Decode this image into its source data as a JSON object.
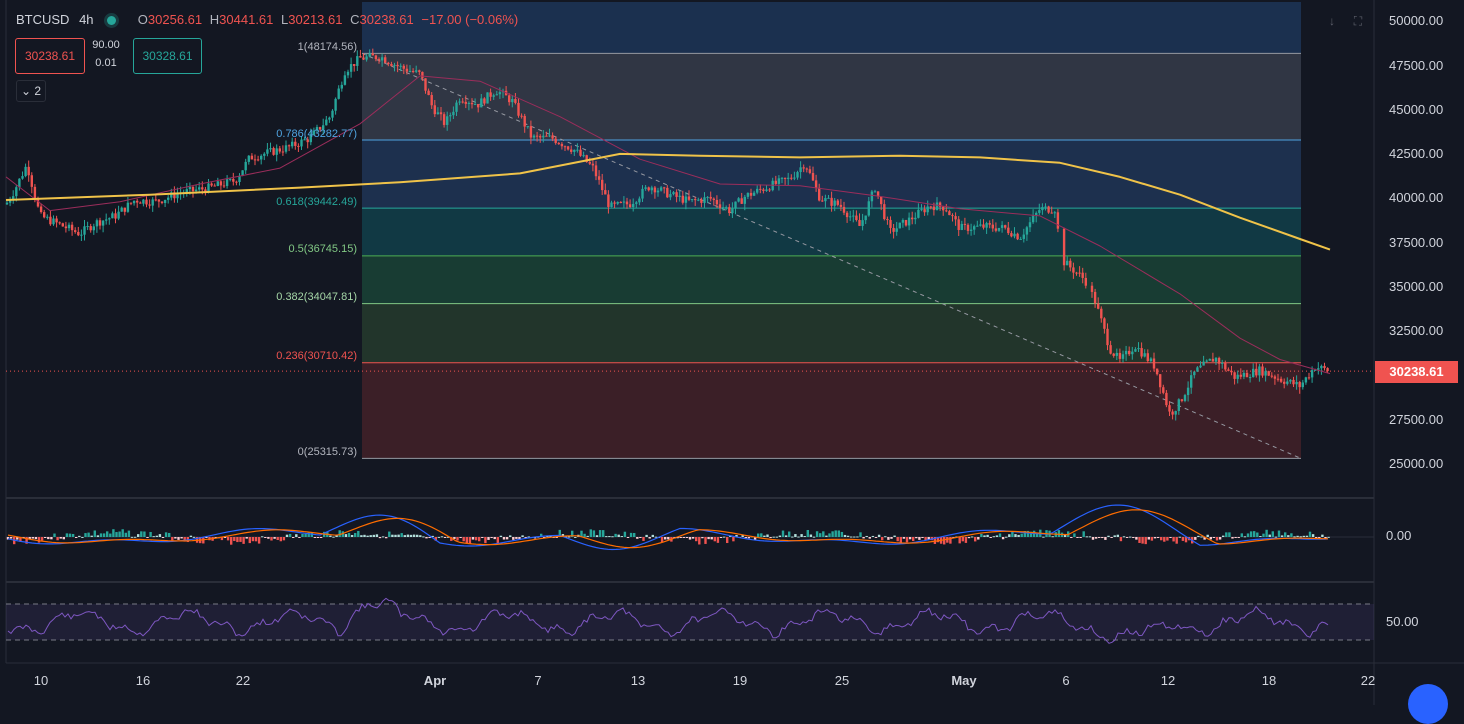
{
  "header": {
    "symbol": "BTCUSD",
    "interval": "4h",
    "ohlc": {
      "o_label": "O",
      "o": "30256.61",
      "h_label": "H",
      "h": "30441.61",
      "l_label": "L",
      "l": "30213.61",
      "c_label": "C",
      "c": "30238.61",
      "change": "−17.00 (−0.06%)"
    }
  },
  "trade": {
    "sell": "30238.61",
    "buy": "30328.61",
    "spread": "90.00",
    "lot": "0.01"
  },
  "collapse_button": {
    "count": "2"
  },
  "fib_labels": [
    "1(48174.56)",
    "0.786(43282.77)",
    "0.618(39442.49)",
    "0.5(36745.15)",
    "0.382(34047.81)",
    "0.236(30710.42)",
    "0(25315.73)"
  ],
  "price_axis": [
    "50000.00",
    "47500.00",
    "45000.00",
    "42500.00",
    "40000.00",
    "37500.00",
    "35000.00",
    "32500.00",
    "27500.00",
    "25000.00"
  ],
  "current_price_badge": "30238.61",
  "macd_axis": "0.00",
  "rsi_axis": "50.00",
  "time_axis": [
    "10",
    "16",
    "22",
    "Apr",
    "7",
    "13",
    "19",
    "25",
    "May",
    "6",
    "12",
    "18",
    "22"
  ],
  "colors": {
    "up": "#26a69a",
    "down": "#f05350",
    "ema": "#f0c349",
    "ma": "#9b2d5b",
    "rsi": "#7e57c2"
  },
  "icons": [
    "market-status-icon",
    "download-icon",
    "fullscreen-icon",
    "chevron-down-icon",
    "chat-icon"
  ],
  "chart_data": {
    "type": "candlestick",
    "symbol": "BTCUSD",
    "timeframe": "4h",
    "y_range": [
      24000,
      50800
    ],
    "fibonacci": [
      {
        "level": 1,
        "price": 48174.56
      },
      {
        "level": 0.786,
        "price": 43282.77
      },
      {
        "level": 0.618,
        "price": 39442.49
      },
      {
        "level": 0.5,
        "price": 36745.15
      },
      {
        "level": 0.382,
        "price": 34047.81
      },
      {
        "level": 0.236,
        "price": 30710.42
      },
      {
        "level": 0,
        "price": 25315.73
      }
    ],
    "price_path": [
      [
        0,
        39100
      ],
      [
        14,
        40400
      ],
      [
        27,
        41900
      ],
      [
        40,
        39000
      ],
      [
        60,
        38500
      ],
      [
        80,
        38000
      ],
      [
        95,
        38600
      ],
      [
        115,
        39000
      ],
      [
        135,
        39900
      ],
      [
        155,
        39800
      ],
      [
        180,
        40300
      ],
      [
        210,
        40600
      ],
      [
        235,
        41000
      ],
      [
        250,
        42300
      ],
      [
        270,
        42600
      ],
      [
        290,
        42900
      ],
      [
        310,
        43400
      ],
      [
        330,
        44600
      ],
      [
        345,
        47200
      ],
      [
        360,
        47900
      ],
      [
        380,
        48000
      ],
      [
        400,
        47400
      ],
      [
        420,
        47000
      ],
      [
        432,
        45200
      ],
      [
        445,
        44200
      ],
      [
        460,
        45700
      ],
      [
        478,
        45300
      ],
      [
        496,
        46100
      ],
      [
        512,
        45500
      ],
      [
        532,
        43400
      ],
      [
        552,
        43400
      ],
      [
        575,
        42700
      ],
      [
        593,
        41700
      ],
      [
        610,
        39500
      ],
      [
        630,
        39700
      ],
      [
        650,
        40700
      ],
      [
        670,
        40200
      ],
      [
        690,
        39800
      ],
      [
        710,
        40000
      ],
      [
        730,
        39300
      ],
      [
        745,
        40100
      ],
      [
        770,
        40700
      ],
      [
        790,
        41100
      ],
      [
        805,
        42000
      ],
      [
        820,
        40000
      ],
      [
        840,
        39600
      ],
      [
        860,
        38400
      ],
      [
        875,
        40600
      ],
      [
        890,
        38100
      ],
      [
        910,
        38800
      ],
      [
        930,
        39600
      ],
      [
        945,
        39500
      ],
      [
        960,
        38300
      ],
      [
        985,
        38400
      ],
      [
        1005,
        38300
      ],
      [
        1020,
        37800
      ],
      [
        1040,
        39400
      ],
      [
        1055,
        39400
      ],
      [
        1062,
        36500
      ],
      [
        1085,
        35400
      ],
      [
        1095,
        34200
      ],
      [
        1110,
        31500
      ],
      [
        1120,
        30800
      ],
      [
        1135,
        31700
      ],
      [
        1155,
        30500
      ],
      [
        1170,
        27800
      ],
      [
        1180,
        28500
      ],
      [
        1195,
        30200
      ],
      [
        1215,
        31000
      ],
      [
        1235,
        29900
      ],
      [
        1260,
        30300
      ],
      [
        1280,
        29800
      ],
      [
        1300,
        29400
      ],
      [
        1315,
        30500
      ],
      [
        1330,
        30250
      ]
    ],
    "ema_line": [
      [
        6,
        39900
      ],
      [
        150,
        40200
      ],
      [
        300,
        40600
      ],
      [
        400,
        40900
      ],
      [
        520,
        41400
      ],
      [
        620,
        42500
      ],
      [
        700,
        42400
      ],
      [
        800,
        42300
      ],
      [
        900,
        42400
      ],
      [
        980,
        42300
      ],
      [
        1060,
        42000
      ],
      [
        1120,
        41200
      ],
      [
        1180,
        40200
      ],
      [
        1240,
        38900
      ],
      [
        1300,
        37700
      ],
      [
        1330,
        37100
      ]
    ],
    "ma_line": [
      [
        6,
        41200
      ],
      [
        50,
        39300
      ],
      [
        120,
        39800
      ],
      [
        200,
        40800
      ],
      [
        280,
        41700
      ],
      [
        360,
        44200
      ],
      [
        420,
        46900
      ],
      [
        480,
        46600
      ],
      [
        560,
        44600
      ],
      [
        640,
        42200
      ],
      [
        720,
        40800
      ],
      [
        800,
        40700
      ],
      [
        880,
        40100
      ],
      [
        960,
        39400
      ],
      [
        1040,
        39000
      ],
      [
        1100,
        37300
      ],
      [
        1180,
        34600
      ],
      [
        1240,
        32100
      ],
      [
        1280,
        30900
      ],
      [
        1330,
        30100
      ]
    ],
    "macd_zero": 0,
    "rsi_mid": 50
  }
}
